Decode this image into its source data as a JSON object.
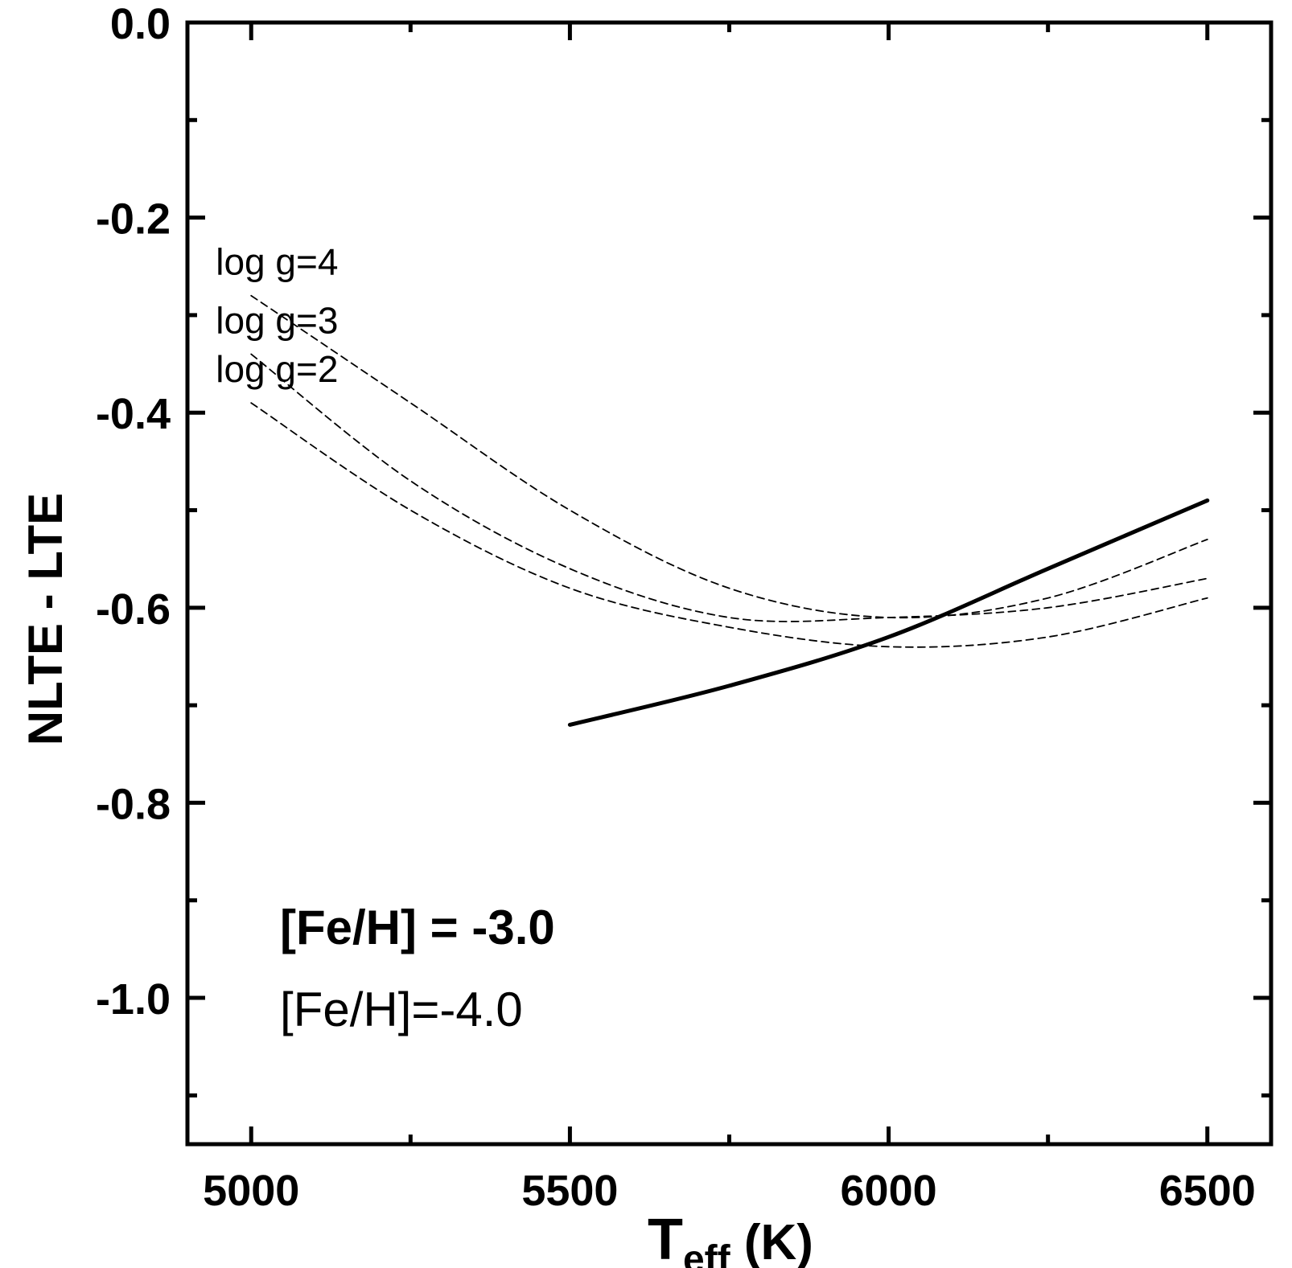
{
  "chart_data": {
    "type": "line",
    "xlabel": {
      "main": "T",
      "sub": "eff",
      "unit": " (K)"
    },
    "ylabel": "NLTE - LTE",
    "xlim": [
      4900,
      6600
    ],
    "ylim": [
      -1.15,
      0.0
    ],
    "x_ticks": [
      5000,
      5500,
      6000,
      6500
    ],
    "x_tick_labels": [
      "5000",
      "5500",
      "6000",
      "6500"
    ],
    "x_minor_ticks": [
      5250,
      5750,
      6250
    ],
    "y_ticks": [
      0.0,
      -0.2,
      -0.4,
      -0.6,
      -0.8,
      -1.0
    ],
    "y_tick_labels": [
      "0.0",
      "-0.2",
      "-0.4",
      "-0.6",
      "-0.8",
      "-1.0"
    ],
    "y_minor_ticks": [
      -0.1,
      -0.3,
      -0.5,
      -0.7,
      -0.9,
      -1.1
    ],
    "grid": false,
    "legend_entries": [
      {
        "text": "[Fe/H] = -3.0",
        "style": "bold"
      },
      {
        "text": "[Fe/H]=-4.0",
        "style": "normal"
      }
    ],
    "series": [
      {
        "group": "[Fe/H] = -3.0",
        "style": "solid",
        "x": [
          5500,
          5750,
          6000,
          6250,
          6500
        ],
        "y": [
          -0.72,
          -0.68,
          -0.63,
          -0.56,
          -0.49
        ]
      },
      {
        "name": "log g=4",
        "group": "[Fe/H]=-4.0",
        "style": "dashed",
        "x": [
          5000,
          5250,
          5500,
          5750,
          6000,
          6250,
          6500
        ],
        "y": [
          -0.28,
          -0.39,
          -0.5,
          -0.58,
          -0.61,
          -0.59,
          -0.53
        ]
      },
      {
        "name": "log g=3",
        "group": "[Fe/H]=-4.0",
        "style": "dashed",
        "x": [
          5000,
          5250,
          5500,
          5750,
          6000,
          6250,
          6500
        ],
        "y": [
          -0.34,
          -0.47,
          -0.56,
          -0.61,
          -0.61,
          -0.6,
          -0.57
        ]
      },
      {
        "name": "log g=2",
        "group": "[Fe/H]=-4.0",
        "style": "dashed",
        "x": [
          5000,
          5250,
          5500,
          5750,
          6000,
          6250,
          6500
        ],
        "y": [
          -0.39,
          -0.5,
          -0.58,
          -0.62,
          -0.64,
          -0.63,
          -0.59
        ]
      }
    ]
  }
}
